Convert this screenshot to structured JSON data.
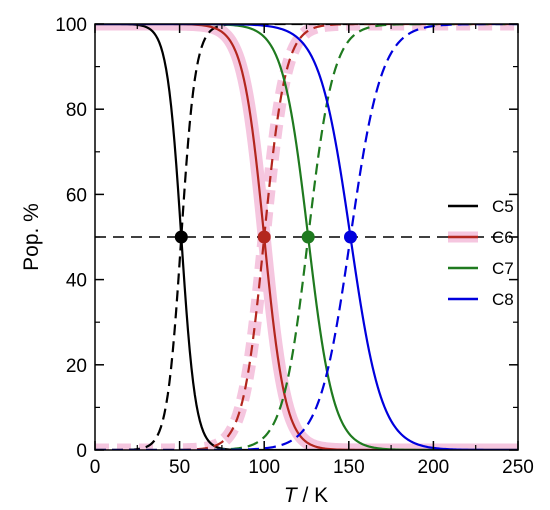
{
  "chart_data": {
    "type": "line",
    "xlabel_italic": "T",
    "xlabel_rest": " / K",
    "ylabel": "Pop. %",
    "xlim": [
      0,
      250
    ],
    "ylim": [
      0,
      100
    ],
    "xticks": [
      0,
      50,
      100,
      150,
      200,
      250
    ],
    "yticks": [
      0,
      20,
      40,
      60,
      80,
      100
    ],
    "grid": false,
    "legend_placement": "right",
    "reference_line": {
      "y": 50,
      "style": "dashed",
      "color": "#000000"
    },
    "series": [
      {
        "name": "C5",
        "color": "#000000",
        "glow": false,
        "midpoint_T": 51,
        "width_K": 4.2,
        "midpoint_pop": 50
      },
      {
        "name": "C6",
        "color": "#b3261e",
        "glow": true,
        "glow_color": "#f5c6df",
        "midpoint_T": 100,
        "width_K": 6.3,
        "midpoint_pop": 50
      },
      {
        "name": "C7",
        "color": "#1f7a1f",
        "glow": false,
        "midpoint_T": 126,
        "width_K": 7.5,
        "midpoint_pop": 50
      },
      {
        "name": "C8",
        "color": "#0000dd",
        "glow": false,
        "midpoint_T": 151,
        "width_K": 9.2,
        "midpoint_pop": 50
      }
    ],
    "series_note_values": {
      "solid": "decreasing population (T below midpoint → 100%)",
      "dashed": "increasing population (T above midpoint → 100%)"
    }
  }
}
